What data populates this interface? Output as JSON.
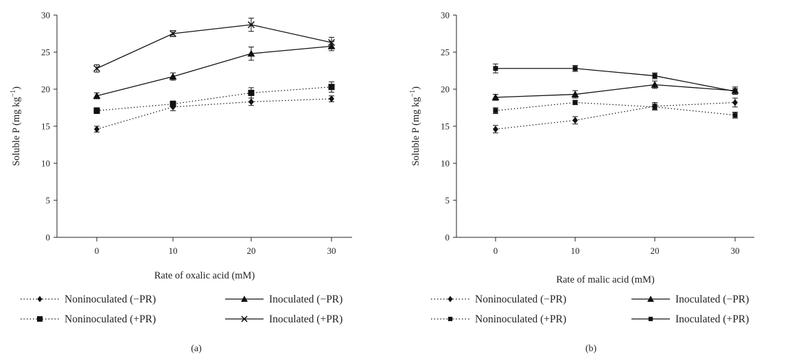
{
  "chart_data": [
    {
      "type": "line",
      "panel_label": "(a)",
      "xlabel": "Rate of oxalic acid (mM)",
      "ylabel_main": "Soluble P (mg kg",
      "ylabel_sup": "−1",
      "ylabel_close": ")",
      "x": [
        0,
        10,
        20,
        30
      ],
      "ylim": [
        0,
        30
      ],
      "yticks": [
        0,
        5,
        10,
        15,
        20,
        25,
        30
      ],
      "xticks": [
        0,
        10,
        20,
        30
      ],
      "grid": false,
      "legend_position": "bottom",
      "series": [
        {
          "name": "Noninoculated (−PR)",
          "marker": "diamond",
          "dash": "dotted",
          "values": [
            14.6,
            17.6,
            18.3,
            18.7
          ],
          "errors": [
            0.4,
            0.5,
            0.5,
            0.4
          ]
        },
        {
          "name": "Noninoculated (+PR)",
          "marker": "square",
          "dash": "dotted",
          "values": [
            17.1,
            18.0,
            19.5,
            20.3
          ],
          "errors": [
            0.4,
            0.4,
            0.7,
            0.7
          ]
        },
        {
          "name": "Inoculated (−PR)",
          "marker": "triangle",
          "dash": "solid",
          "values": [
            19.1,
            21.7,
            24.8,
            25.8
          ],
          "errors": [
            0.4,
            0.5,
            0.9,
            0.6
          ]
        },
        {
          "name": "Inoculated (+PR)",
          "marker": "x",
          "dash": "solid",
          "values": [
            22.8,
            27.5,
            28.7,
            26.3
          ],
          "errors": [
            0.5,
            0.4,
            0.9,
            0.7
          ]
        }
      ]
    },
    {
      "type": "line",
      "panel_label": "(b)",
      "xlabel": "Rate of malic acid (mM)",
      "ylabel_main": "Soluble P (mg kg",
      "ylabel_sup": "−1",
      "ylabel_close": ")",
      "x": [
        0,
        10,
        20,
        30
      ],
      "ylim": [
        0,
        30
      ],
      "yticks": [
        0,
        5,
        10,
        15,
        20,
        25,
        30
      ],
      "xticks": [
        0,
        10,
        20,
        30
      ],
      "grid": false,
      "legend_position": "bottom",
      "series": [
        {
          "name": "Noninoculated (−PR)",
          "marker": "diamond",
          "dash": "dotted",
          "values": [
            14.6,
            15.8,
            17.7,
            18.2
          ],
          "errors": [
            0.5,
            0.5,
            0.5,
            0.6
          ]
        },
        {
          "name": "Noninoculated (+PR)",
          "marker": "square-small",
          "dash": "dotted",
          "values": [
            17.1,
            18.2,
            17.6,
            16.5
          ],
          "errors": [
            0.4,
            0.3,
            0.4,
            0.4
          ]
        },
        {
          "name": "Inoculated (−PR)",
          "marker": "triangle",
          "dash": "solid",
          "values": [
            18.9,
            19.3,
            20.6,
            19.8
          ],
          "errors": [
            0.4,
            0.5,
            0.5,
            0.5
          ]
        },
        {
          "name": "Inoculated (+PR)",
          "marker": "square-small",
          "dash": "solid",
          "values": [
            22.8,
            22.8,
            21.8,
            19.7
          ],
          "errors": [
            0.6,
            0.4,
            0.4,
            0.4
          ]
        }
      ]
    }
  ]
}
